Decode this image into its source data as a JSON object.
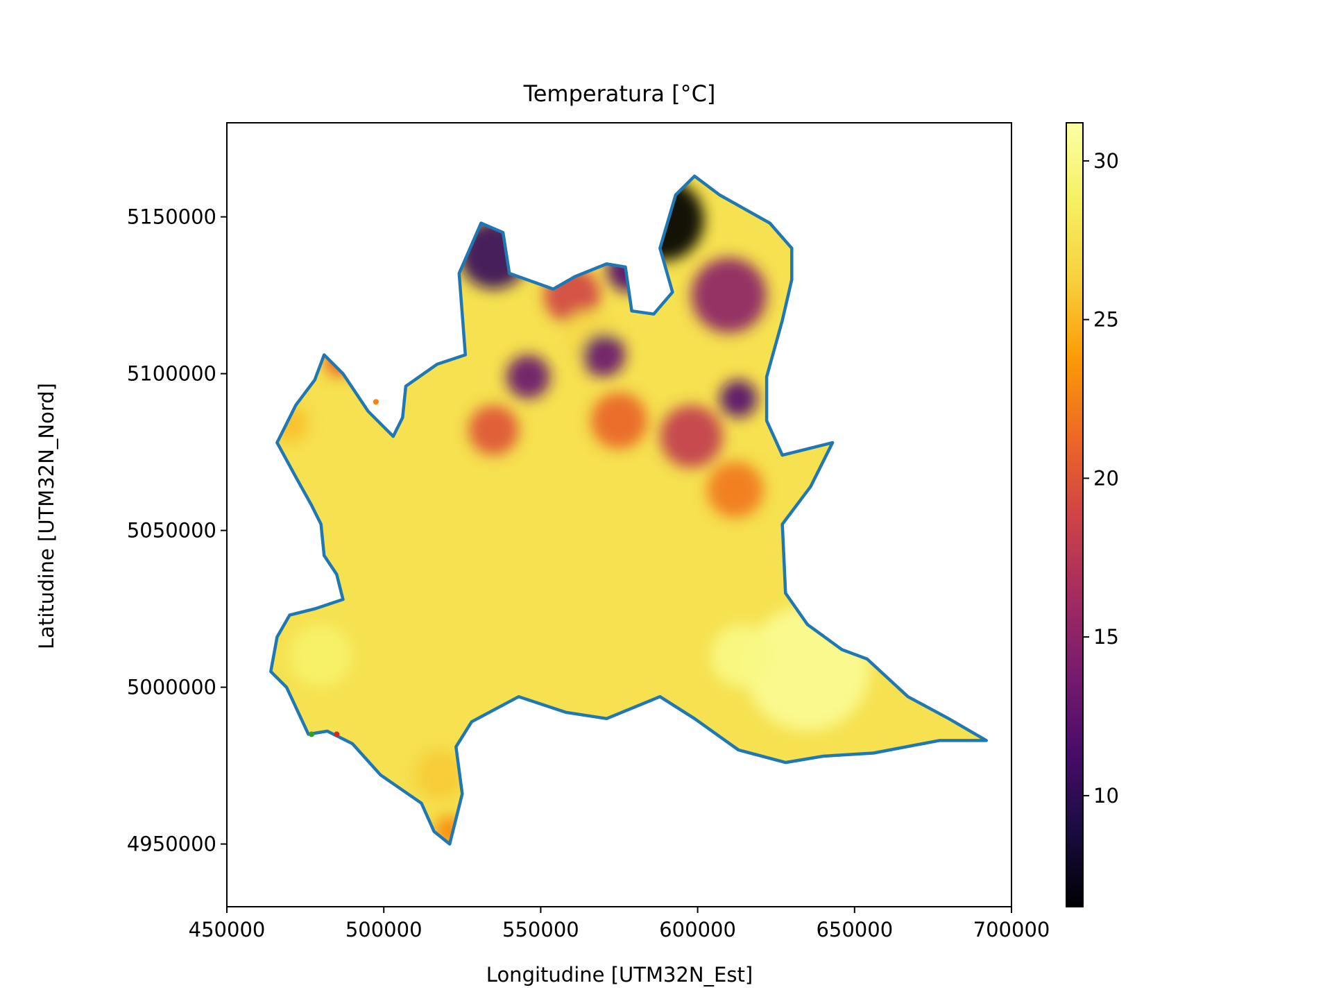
{
  "chart_data": {
    "type": "heatmap",
    "title": "Temperatura [°C]",
    "xlabel": "Longitudine [UTM32N_Est]",
    "ylabel": "Latitudine [UTM32N_Nord]",
    "xlim": [
      450000,
      700000
    ],
    "ylim": [
      4930000,
      5180000
    ],
    "xticks": [
      {
        "value": 450000,
        "label": "450000"
      },
      {
        "value": 500000,
        "label": "500000"
      },
      {
        "value": 550000,
        "label": "550000"
      },
      {
        "value": 600000,
        "label": "600000"
      },
      {
        "value": 650000,
        "label": "650000"
      },
      {
        "value": 700000,
        "label": "700000"
      }
    ],
    "yticks": [
      {
        "value": 4950000,
        "label": "4950000"
      },
      {
        "value": 5000000,
        "label": "5000000"
      },
      {
        "value": 5050000,
        "label": "5050000"
      },
      {
        "value": 5100000,
        "label": "5100000"
      },
      {
        "value": 5150000,
        "label": "5150000"
      }
    ],
    "colorbar": {
      "colormap": "inferno",
      "range": [
        6.5,
        31.2
      ],
      "ticks": [
        {
          "value": 10,
          "label": "10"
        },
        {
          "value": 15,
          "label": "15"
        },
        {
          "value": 20,
          "label": "20"
        },
        {
          "value": 25,
          "label": "25"
        },
        {
          "value": 30,
          "label": "30"
        }
      ]
    },
    "boundary_color": "#1f77b4",
    "region_outline": [
      [
        466000,
        5016000
      ],
      [
        470000,
        5023000
      ],
      [
        478000,
        5025000
      ],
      [
        487000,
        5028000
      ],
      [
        485000,
        5036000
      ],
      [
        481000,
        5042000
      ],
      [
        480000,
        5052000
      ],
      [
        477000,
        5058000
      ],
      [
        472000,
        5067000
      ],
      [
        466000,
        5078000
      ],
      [
        472000,
        5090000
      ],
      [
        478000,
        5098000
      ],
      [
        481000,
        5106000
      ],
      [
        487000,
        5100000
      ],
      [
        495000,
        5088000
      ],
      [
        503000,
        5080000
      ],
      [
        506000,
        5086000
      ],
      [
        507000,
        5096000
      ],
      [
        517000,
        5103000
      ],
      [
        526000,
        5106000
      ],
      [
        524000,
        5132000
      ],
      [
        531000,
        5148000
      ],
      [
        538000,
        5145000
      ],
      [
        540000,
        5132000
      ],
      [
        554000,
        5127000
      ],
      [
        561000,
        5131000
      ],
      [
        571000,
        5135000
      ],
      [
        577000,
        5134000
      ],
      [
        579000,
        5120000
      ],
      [
        586000,
        5119000
      ],
      [
        592000,
        5126000
      ],
      [
        588000,
        5140000
      ],
      [
        593000,
        5157000
      ],
      [
        599000,
        5163000
      ],
      [
        607000,
        5157000
      ],
      [
        623000,
        5148000
      ],
      [
        630000,
        5140000
      ],
      [
        630000,
        5130000
      ],
      [
        627000,
        5117000
      ],
      [
        622000,
        5099000
      ],
      [
        622000,
        5085000
      ],
      [
        627000,
        5074000
      ],
      [
        643000,
        5078000
      ],
      [
        636000,
        5064000
      ],
      [
        627000,
        5052000
      ],
      [
        628000,
        5030000
      ],
      [
        635000,
        5020000
      ],
      [
        646000,
        5012000
      ],
      [
        654000,
        5009000
      ],
      [
        667000,
        4997000
      ],
      [
        680000,
        4990000
      ],
      [
        692000,
        4983000
      ],
      [
        677000,
        4983000
      ],
      [
        656000,
        4979000
      ],
      [
        640000,
        4978000
      ],
      [
        628000,
        4976000
      ],
      [
        613000,
        4980000
      ],
      [
        599000,
        4990000
      ],
      [
        588000,
        4997000
      ],
      [
        571000,
        4990000
      ],
      [
        558000,
        4992000
      ],
      [
        543000,
        4997000
      ],
      [
        528000,
        4989000
      ],
      [
        523000,
        4981000
      ],
      [
        525000,
        4966000
      ],
      [
        521000,
        4950000
      ],
      [
        516000,
        4954000
      ],
      [
        512000,
        4963000
      ],
      [
        499000,
        4972000
      ],
      [
        490000,
        4982000
      ],
      [
        482000,
        4986000
      ],
      [
        476000,
        4985000
      ],
      [
        469000,
        5000000
      ],
      [
        464000,
        5005000
      ],
      [
        466000,
        5016000
      ]
    ],
    "hotspots": [
      {
        "x": 589000,
        "y": 5149000,
        "value": 6.5,
        "radius": 13000
      },
      {
        "x": 578000,
        "y": 5133000,
        "value": 12.0,
        "radius": 7000
      },
      {
        "x": 535000,
        "y": 5138000,
        "value": 10.5,
        "radius": 11000
      },
      {
        "x": 560000,
        "y": 5125000,
        "value": 19.0,
        "radius": 9000
      },
      {
        "x": 565000,
        "y": 5112000,
        "value": 27.0,
        "radius": 8000
      },
      {
        "x": 546000,
        "y": 5099000,
        "value": 13.0,
        "radius": 7000
      },
      {
        "x": 570000,
        "y": 5106000,
        "value": 13.0,
        "radius": 7000
      },
      {
        "x": 610000,
        "y": 5125000,
        "value": 15.0,
        "radius": 12000
      },
      {
        "x": 613000,
        "y": 5092000,
        "value": 12.0,
        "radius": 6000
      },
      {
        "x": 598000,
        "y": 5080000,
        "value": 18.0,
        "radius": 10000
      },
      {
        "x": 535000,
        "y": 5082000,
        "value": 20.0,
        "radius": 8000
      },
      {
        "x": 575000,
        "y": 5085000,
        "value": 21.0,
        "radius": 9000
      },
      {
        "x": 612000,
        "y": 5063000,
        "value": 22.0,
        "radius": 9000
      },
      {
        "x": 486000,
        "y": 5104000,
        "value": 21.0,
        "radius": 5000
      },
      {
        "x": 521000,
        "y": 4954000,
        "value": 23.0,
        "radius": 5000
      },
      {
        "x": 518000,
        "y": 4972000,
        "value": 26.0,
        "radius": 8000
      },
      {
        "x": 470000,
        "y": 5084000,
        "value": 25.5,
        "radius": 6000
      },
      {
        "x": 635000,
        "y": 5006000,
        "value": 30.5,
        "radius": 20000
      },
      {
        "x": 614000,
        "y": 5010000,
        "value": 30.0,
        "radius": 10000
      },
      {
        "x": 480000,
        "y": 5010000,
        "value": 29.0,
        "radius": 10000
      }
    ],
    "markers": [
      {
        "x": 497500,
        "y": 5091000,
        "color": "#ff7f0e"
      },
      {
        "x": 477000,
        "y": 4985000,
        "color": "#2ca02c"
      },
      {
        "x": 485000,
        "y": 4985000,
        "color": "#d62728"
      }
    ]
  }
}
